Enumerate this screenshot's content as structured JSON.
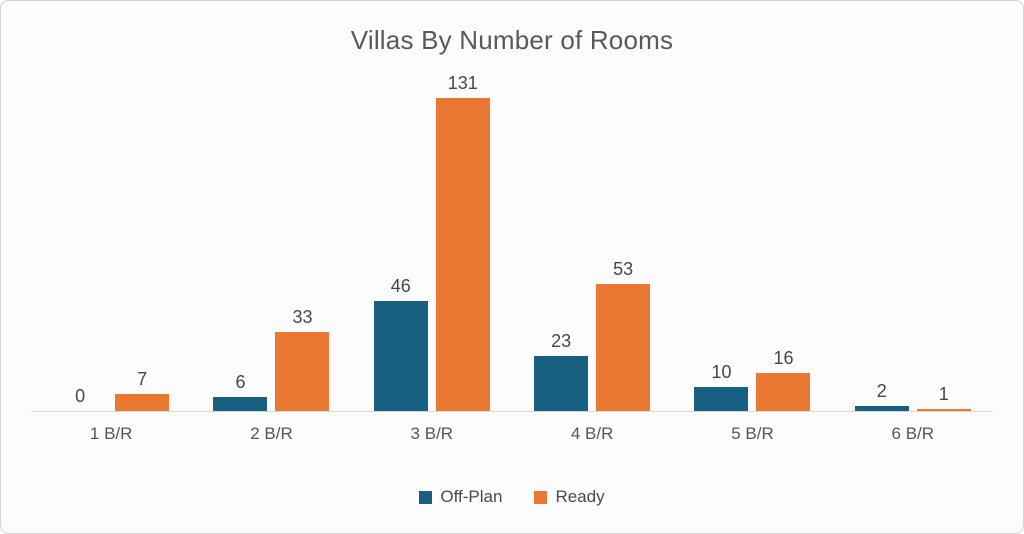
{
  "chart_data": {
    "type": "bar",
    "title": "Villas By Number of Rooms",
    "categories": [
      "1 B/R",
      "2 B/R",
      "3 B/R",
      "4 B/R",
      "5 B/R",
      "6 B/R"
    ],
    "series": [
      {
        "name": "Off-Plan",
        "color": "#176082",
        "values": [
          0,
          6,
          46,
          23,
          10,
          2
        ]
      },
      {
        "name": "Ready",
        "color": "#EA7832",
        "values": [
          7,
          33,
          131,
          53,
          16,
          1
        ]
      }
    ],
    "ylim": [
      0,
      131
    ],
    "xlabel": "",
    "ylabel": "",
    "grid": false,
    "data_labels": true,
    "legend_position": "bottom"
  },
  "colors": {
    "off_plan": "#176082",
    "ready": "#EA7832",
    "axis_line": "#d9d9d9",
    "card_border": "#d4d4d4",
    "card_background": "#fcfcfc",
    "title_text": "#595959",
    "label_text": "#474747"
  }
}
